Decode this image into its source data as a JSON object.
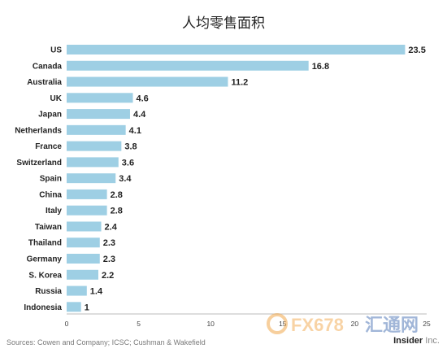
{
  "chart_data": {
    "type": "bar",
    "orientation": "horizontal",
    "title": "人均零售面积",
    "categories": [
      "US",
      "Canada",
      "Australia",
      "UK",
      "Japan",
      "Netherlands",
      "France",
      "Switzerland",
      "Spain",
      "China",
      "Italy",
      "Taiwan",
      "Thailand",
      "Germany",
      "S. Korea",
      "Russia",
      "Indonesia"
    ],
    "values": [
      23.5,
      16.8,
      11.2,
      4.6,
      4.4,
      4.1,
      3.8,
      3.6,
      3.4,
      2.8,
      2.8,
      2.4,
      2.3,
      2.3,
      2.2,
      1.4,
      1
    ],
    "value_labels": [
      "23.5",
      "16.8",
      "11.2",
      "4.6",
      "4.4",
      "4.1",
      "3.8",
      "3.6",
      "3.4",
      "2.8",
      "2.8",
      "2.4",
      "2.3",
      "2.3",
      "2.2",
      "1.4",
      "1"
    ],
    "xlim": [
      0,
      25
    ],
    "xticks": [
      0,
      5,
      10,
      15,
      20,
      25
    ],
    "grid": false,
    "bar_color": "#9ecfe4"
  },
  "footer": {
    "source": "Sources: Cowen and Company; ICSC; Cushman & Wakefield",
    "brand_bold": "Insider",
    "brand_rest": " Inc."
  },
  "watermark": {
    "text1": "FX678",
    "text2": "汇通网",
    "icon": "fx678-logo-icon"
  }
}
